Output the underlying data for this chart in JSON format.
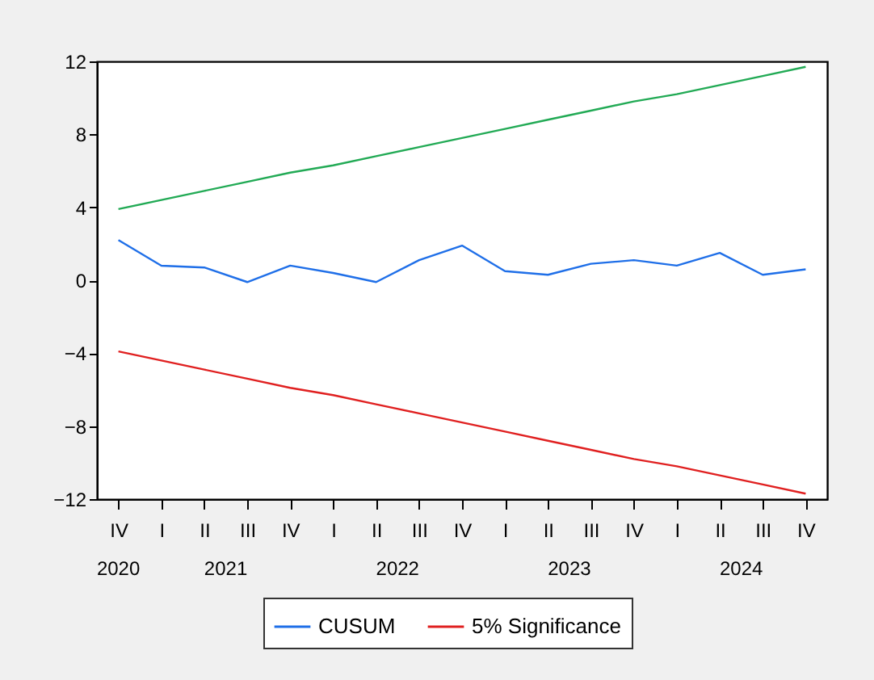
{
  "chart_data": {
    "type": "line",
    "categories": [
      "IV",
      "I",
      "II",
      "III",
      "IV",
      "I",
      "II",
      "III",
      "IV",
      "I",
      "II",
      "III",
      "IV",
      "I",
      "II",
      "III",
      "IV"
    ],
    "annotations": [
      "2020",
      "2021",
      "2022",
      "2023",
      "2024"
    ],
    "ylim": [
      -12,
      12
    ],
    "yticks": [
      -12,
      -8,
      -4,
      0,
      4,
      8,
      12
    ],
    "grid": false,
    "legend": "bottom",
    "marker": "none",
    "line_style": "solid",
    "series": [
      {
        "name": "CUSUM",
        "color": "#1f6fe8",
        "values": [
          2.2,
          0.8,
          0.7,
          -0.1,
          0.8,
          0.4,
          -0.1,
          1.1,
          1.9,
          0.5,
          0.3,
          0.9,
          1.1,
          0.8,
          1.5,
          0.3,
          0.6
        ]
      },
      {
        "name": "5% Significance",
        "color": "#e02020",
        "values": [
          -3.9,
          -4.4,
          -4.9,
          -5.4,
          -5.9,
          -6.3,
          -6.8,
          -7.3,
          -7.8,
          -8.3,
          -8.8,
          -9.3,
          -9.8,
          -10.2,
          -10.7,
          -11.2,
          -11.7
        ]
      },
      {
        "color": "#22aa55",
        "values": [
          3.9,
          4.4,
          4.9,
          5.4,
          5.9,
          6.3,
          6.8,
          7.3,
          7.8,
          8.3,
          8.8,
          9.3,
          9.8,
          10.2,
          10.7,
          11.2,
          11.7
        ]
      }
    ]
  }
}
